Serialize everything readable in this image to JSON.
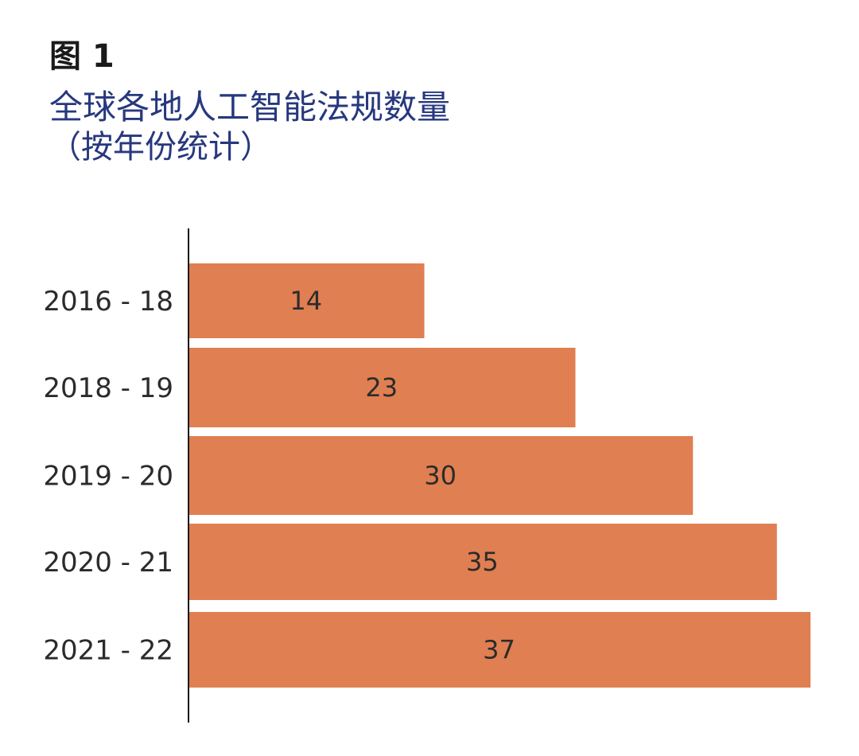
{
  "figure_label": "图 1",
  "title": "全球各地人工智能法规数量",
  "subtitle": "（按年份统计）",
  "colors": {
    "bar": "#e07f52",
    "axis": "#1a1a1a",
    "title": "#27387e",
    "text": "#2b2b2b"
  },
  "chart_data": {
    "type": "bar",
    "orientation": "horizontal",
    "categories": [
      "2016 - 18",
      "2018 - 19",
      "2019 - 20",
      "2020 - 21",
      "2021 - 22"
    ],
    "values": [
      14,
      23,
      30,
      35,
      37
    ],
    "data_labels": [
      "14",
      "23",
      "30",
      "35",
      "37"
    ],
    "xlim": [
      0,
      37
    ],
    "grid": false,
    "legend": "none"
  }
}
